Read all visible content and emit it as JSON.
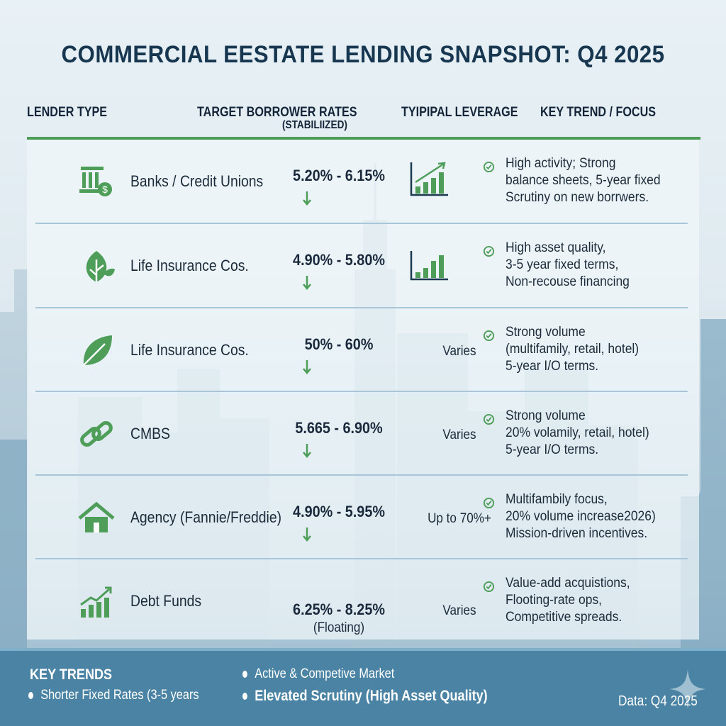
{
  "title": "COMMERCIAL EESTATE LENDING SNAPSHOT: Q4 2025",
  "headers": {
    "lender_type": "LENDER TYPE",
    "rates": "TARGET BORROWER RATES",
    "rates_sub": "(STABILIIZED)",
    "leverage": "TYIPIPAL LEVERAGE",
    "trend": "KEY TREND / FOCUS"
  },
  "rows": [
    {
      "icon": "bank-dollar-icon",
      "name": "Banks / Credit Unions",
      "rate": "5.20% - 6.15%",
      "rate_sub": "",
      "leverage": "",
      "leverage_icon": "growth-chart-icon",
      "trend": [
        "High activity; Strong",
        "balance sheets, 5-year fixed",
        "Scrutiny on new borrwers."
      ]
    },
    {
      "icon": "leaf-sprout-icon",
      "name": "Life Insurance Cos.",
      "rate": "4.90% - 5.80%",
      "rate_sub": "",
      "leverage": "",
      "leverage_icon": "bar-chart-icon",
      "trend": [
        "High asset quality,",
        "3-5 year fixed terms,",
        "Non-recouse financing"
      ]
    },
    {
      "icon": "leaf-icon",
      "name": "Life Insurance Cos.",
      "rate": "50% - 60%",
      "rate_sub": "",
      "leverage": "Varies",
      "leverage_icon": "",
      "trend": [
        "Strong volume",
        "(multifamily, retail, hotel)",
        "5-year I/O terms."
      ]
    },
    {
      "icon": "chain-link-icon",
      "name": "CMBS",
      "rate": "5.665 - 6.90%",
      "rate_sub": "",
      "leverage": "Varies",
      "leverage_icon": "",
      "trend": [
        "Strong volume",
        "20% volamily, retail, hotel)",
        "5-year I/O terms."
      ]
    },
    {
      "icon": "house-icon",
      "name": "Agency (Fannie/Freddie)",
      "rate": "4.90% - 5.95%",
      "rate_sub": "",
      "leverage": "Up to 70%+",
      "leverage_icon": "",
      "trend": [
        "Multifambily focus,",
        "20% volume increase2026)",
        "Mission-driven incentives."
      ]
    },
    {
      "icon": "trend-up-chart-icon",
      "name": "Debt Funds",
      "rate": "6.25% - 8.25%",
      "rate_sub": "(Floating)",
      "leverage": "Varies",
      "leverage_icon": "",
      "trend": [
        "Value-add acquistions,",
        "Flooting-rate ops,",
        "Competitive spreads."
      ]
    }
  ],
  "footer": {
    "heading": "KEY TRENDS",
    "items": [
      "Shorter Fixed Rates (3-5 years",
      "Active & Competive Market",
      "Elevated Scrutiny (High Asset Quality)"
    ],
    "source": "Data: Q4 2025"
  },
  "colors": {
    "accent_green": "#4e9e5a",
    "title": "#173650",
    "footer_bg": "#4a83a3"
  }
}
